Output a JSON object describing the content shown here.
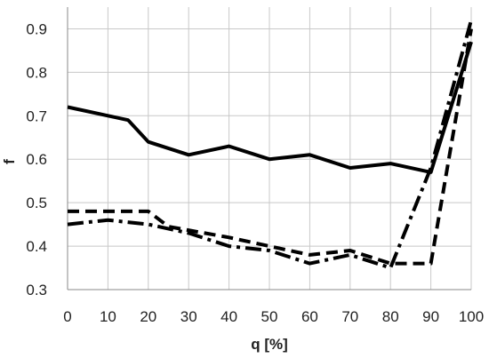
{
  "chart_data": {
    "type": "line",
    "xlabel": "q [%]",
    "ylabel": "f",
    "xlim": [
      0,
      100
    ],
    "ylim": [
      0.3,
      0.95
    ],
    "xticks": [
      0,
      10,
      20,
      30,
      40,
      50,
      60,
      70,
      80,
      90,
      100
    ],
    "yticks": [
      0.3,
      0.4,
      0.5,
      0.6,
      0.7,
      0.8,
      0.9
    ],
    "grid": true,
    "legend": "none",
    "series": [
      {
        "style": "solid",
        "color": "#000000",
        "x": [
          0,
          10,
          15,
          20,
          30,
          40,
          50,
          60,
          70,
          80,
          90,
          100
        ],
        "y": [
          0.72,
          0.7,
          0.69,
          0.64,
          0.61,
          0.63,
          0.6,
          0.61,
          0.58,
          0.59,
          0.57,
          0.87
        ]
      },
      {
        "style": "dashed",
        "color": "#000000",
        "x": [
          0,
          10,
          20,
          25,
          40,
          50,
          60,
          70,
          80,
          90,
          100
        ],
        "y": [
          0.48,
          0.48,
          0.48,
          0.445,
          0.42,
          0.4,
          0.38,
          0.39,
          0.36,
          0.36,
          0.9
        ]
      },
      {
        "style": "dash-dot",
        "color": "#000000",
        "x": [
          0,
          10,
          20,
          30,
          40,
          50,
          60,
          70,
          80,
          90,
          100
        ],
        "y": [
          0.45,
          0.46,
          0.45,
          0.43,
          0.4,
          0.39,
          0.36,
          0.38,
          0.35,
          0.58,
          0.92
        ]
      }
    ]
  }
}
